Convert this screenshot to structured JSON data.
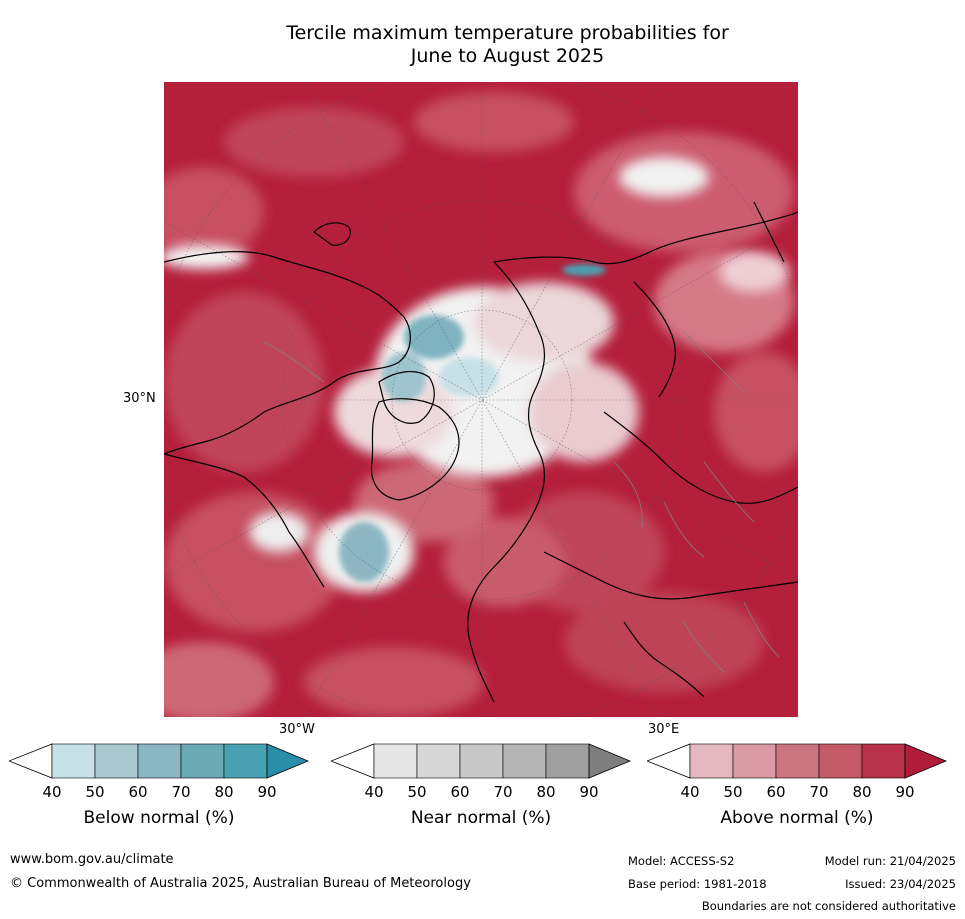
{
  "title": {
    "line1": "Tercile maximum temperature probabilities for",
    "line2": "June to August 2025"
  },
  "map": {
    "projection": "north-polar-stereographic",
    "labels": {
      "lat_left": "30°N",
      "lon_bottom_left": "30°W",
      "lon_bottom_right": "30°E"
    },
    "colors": {
      "dominant": "#b41f3c",
      "ocean_land_border": "#000000",
      "country_border": "#808080",
      "gridline": "#555555"
    }
  },
  "colorbars": [
    {
      "label": "Below normal (%)",
      "ticks": [
        "40",
        "50",
        "60",
        "70",
        "80",
        "90"
      ],
      "colors": [
        "#ffffff",
        "#c8e0e7",
        "#a7c8cf",
        "#8cb7c2",
        "#6aaab7",
        "#48a1b2",
        "#2b8ea8"
      ]
    },
    {
      "label": "Near normal (%)",
      "ticks": [
        "40",
        "50",
        "60",
        "70",
        "80",
        "90"
      ],
      "colors": [
        "#ffffff",
        "#e5e5e5",
        "#d7d7d7",
        "#c8c8c8",
        "#b5b5b5",
        "#a0a0a0",
        "#7e7e7e"
      ]
    },
    {
      "label": "Above normal (%)",
      "ticks": [
        "40",
        "50",
        "60",
        "70",
        "80",
        "90"
      ],
      "colors": [
        "#ffffff",
        "#e3b8be",
        "#d99aa3",
        "#cc7580",
        "#c45a68",
        "#b8324b",
        "#b01c3a"
      ]
    }
  ],
  "footer": {
    "url": "www.bom.gov.au/climate",
    "copyright": "© Commonwealth of Australia 2025, Australian Bureau of Meteorology",
    "model": "Model: ACCESS-S2",
    "model_run": "Model run: 21/04/2025",
    "base_period": "Base period: 1981-2018",
    "issued": "Issued: 23/04/2025",
    "disclaimer": "Boundaries are not considered authoritative"
  }
}
